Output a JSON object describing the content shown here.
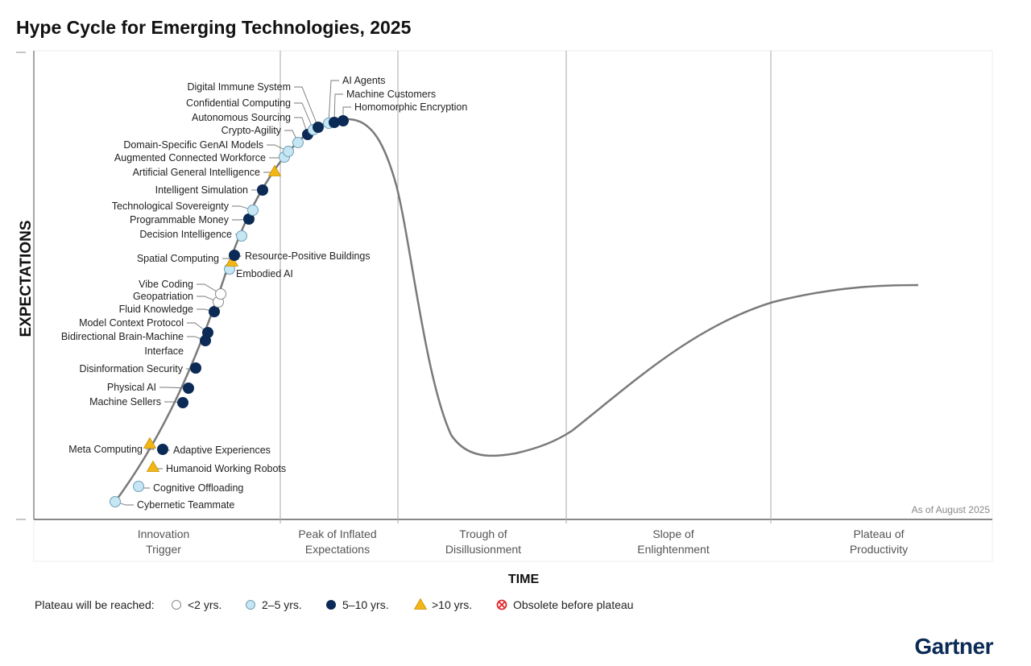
{
  "chart_data": {
    "type": "hype-cycle",
    "title": "Hype Cycle for Emerging Technologies, 2025",
    "xlabel": "TIME",
    "ylabel": "EXPECTATIONS",
    "note": "As of August 2025",
    "brand": "Gartner",
    "phases": [
      [
        "Innovation",
        "Trigger"
      ],
      [
        "Peak of Inflated",
        "Expectations"
      ],
      [
        "Trough of",
        "Disillusionment"
      ],
      [
        "Slope of",
        "Enlightenment"
      ],
      [
        "Plateau of",
        "Productivity"
      ]
    ],
    "legend": {
      "title": "Plateau will be reached:",
      "entries": [
        {
          "key": "lt2",
          "label": "<2 yrs."
        },
        {
          "key": "2to5",
          "label": "2–5 yrs."
        },
        {
          "key": "5to10",
          "label": "5–10 yrs."
        },
        {
          "key": "gt10",
          "label": ">10 yrs."
        },
        {
          "key": "obsolete",
          "label": "Obsolete before plateau"
        }
      ]
    },
    "colors": {
      "lt2": "#ffffff",
      "2to5": "#c6e6f3",
      "5to10": "#0b2a55",
      "gt10": "#f2b617",
      "obsolete": "#e0262b",
      "curve": "#7a7a7a"
    },
    "technologies": [
      {
        "name": "Cybernetic Teammate",
        "plateau": "2to5",
        "phase": "Innovation Trigger"
      },
      {
        "name": "Cognitive Offloading",
        "plateau": "2to5",
        "phase": "Innovation Trigger"
      },
      {
        "name": "Humanoid Working Robots",
        "plateau": "gt10",
        "phase": "Innovation Trigger"
      },
      {
        "name": "Meta Computing",
        "plateau": "gt10",
        "phase": "Innovation Trigger"
      },
      {
        "name": "Adaptive Experiences",
        "plateau": "5to10",
        "phase": "Innovation Trigger"
      },
      {
        "name": "Machine Sellers",
        "plateau": "5to10",
        "phase": "Innovation Trigger"
      },
      {
        "name": "Physical AI",
        "plateau": "5to10",
        "phase": "Innovation Trigger"
      },
      {
        "name": "Disinformation Security",
        "plateau": "5to10",
        "phase": "Innovation Trigger"
      },
      {
        "name": "Bidirectional Brain-Machine Interface",
        "plateau": "5to10",
        "phase": "Innovation Trigger"
      },
      {
        "name": "Model Context Protocol",
        "plateau": "5to10",
        "phase": "Innovation Trigger"
      },
      {
        "name": "Fluid Knowledge",
        "plateau": "5to10",
        "phase": "Innovation Trigger"
      },
      {
        "name": "Geopatriation",
        "plateau": "lt2",
        "phase": "Innovation Trigger"
      },
      {
        "name": "Vibe Coding",
        "plateau": "lt2",
        "phase": "Innovation Trigger"
      },
      {
        "name": "Embodied AI",
        "plateau": "2to5",
        "phase": "Innovation Trigger"
      },
      {
        "name": "Spatial Computing",
        "plateau": "gt10",
        "phase": "Innovation Trigger"
      },
      {
        "name": "Resource-Positive Buildings",
        "plateau": "5to10",
        "phase": "Innovation Trigger"
      },
      {
        "name": "Decision Intelligence",
        "plateau": "2to5",
        "phase": "Innovation Trigger"
      },
      {
        "name": "Programmable Money",
        "plateau": "5to10",
        "phase": "Innovation Trigger"
      },
      {
        "name": "Technological Sovereignty",
        "plateau": "2to5",
        "phase": "Innovation Trigger"
      },
      {
        "name": "Intelligent Simulation",
        "plateau": "5to10",
        "phase": "Innovation Trigger"
      },
      {
        "name": "Artificial General Intelligence",
        "plateau": "gt10",
        "phase": "Innovation Trigger"
      },
      {
        "name": "Augmented Connected Workforce",
        "plateau": "2to5",
        "phase": "Peak of Inflated Expectations"
      },
      {
        "name": "Domain-Specific GenAI Models",
        "plateau": "2to5",
        "phase": "Peak of Inflated Expectations"
      },
      {
        "name": "Crypto-Agility",
        "plateau": "2to5",
        "phase": "Peak of Inflated Expectations"
      },
      {
        "name": "Autonomous Sourcing",
        "plateau": "5to10",
        "phase": "Peak of Inflated Expectations"
      },
      {
        "name": "Confidential Computing",
        "plateau": "2to5",
        "phase": "Peak of Inflated Expectations"
      },
      {
        "name": "Digital Immune System",
        "plateau": "5to10",
        "phase": "Peak of Inflated Expectations"
      },
      {
        "name": "AI Agents",
        "plateau": "2to5",
        "phase": "Peak of Inflated Expectations"
      },
      {
        "name": "Machine Customers",
        "plateau": "5to10",
        "phase": "Peak of Inflated Expectations"
      },
      {
        "name": "Homomorphic Encryption",
        "plateau": "5to10",
        "phase": "Peak of Inflated Expectations"
      }
    ]
  }
}
